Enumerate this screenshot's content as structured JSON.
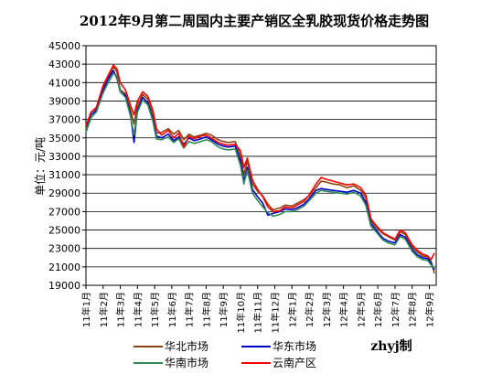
{
  "chart_data": {
    "type": "line",
    "title": "2012年9月第二周国内主要产销区全乳胶现货价格走势图",
    "ylabel": "单位：元/吨",
    "xlabel": "",
    "credit": "zhyj制",
    "ylim": [
      19000,
      45000
    ],
    "yticks": [
      19000,
      21000,
      23000,
      25000,
      27000,
      29000,
      31000,
      33000,
      35000,
      37000,
      39000,
      41000,
      43000,
      45000
    ],
    "yticks_labels": [
      "19000",
      "21000",
      "23000",
      "25000",
      "27000",
      "29000",
      "31000",
      "33000",
      "35000",
      "37000",
      "39000",
      "41000",
      "43000",
      "45000"
    ],
    "categories": [
      "11年1月",
      "11年2月",
      "11年3月",
      "11年4月",
      "11年5月",
      "11年6月",
      "11年7月",
      "11年8月",
      "11年9月",
      "11年10月",
      "11年11月",
      "11年12月",
      "12年1月",
      "12年2月",
      "12年3月",
      "12年4月",
      "12年5月",
      "12年6月",
      "12年7月",
      "12年8月",
      "12年9月"
    ],
    "xlim": [
      0,
      20.4
    ],
    "grid": true,
    "legend_placement": "bottom",
    "series": [
      {
        "name": "华北市场",
        "color": "#8B4513",
        "points": [
          [
            0,
            36000
          ],
          [
            0.3,
            37800
          ],
          [
            0.6,
            38200
          ],
          [
            1.0,
            40500
          ],
          [
            1.3,
            41500
          ],
          [
            1.6,
            42700
          ],
          [
            1.8,
            42200
          ],
          [
            2.0,
            40200
          ],
          [
            2.3,
            39800
          ],
          [
            2.6,
            38000
          ],
          [
            2.8,
            36500
          ],
          [
            3.0,
            38500
          ],
          [
            3.3,
            39700
          ],
          [
            3.6,
            39200
          ],
          [
            3.9,
            37500
          ],
          [
            4.1,
            35500
          ],
          [
            4.4,
            35600
          ],
          [
            4.8,
            36000
          ],
          [
            5.1,
            35400
          ],
          [
            5.4,
            35800
          ],
          [
            5.7,
            34800
          ],
          [
            6.0,
            35400
          ],
          [
            6.3,
            35100
          ],
          [
            6.7,
            35300
          ],
          [
            7.0,
            35500
          ],
          [
            7.3,
            35300
          ],
          [
            7.7,
            34800
          ],
          [
            8.0,
            34600
          ],
          [
            8.3,
            34500
          ],
          [
            8.7,
            34600
          ],
          [
            9.0,
            33000
          ],
          [
            9.2,
            31000
          ],
          [
            9.4,
            32500
          ],
          [
            9.7,
            30000
          ],
          [
            10.0,
            29200
          ],
          [
            10.3,
            28700
          ],
          [
            10.6,
            27800
          ],
          [
            10.9,
            27200
          ],
          [
            11.3,
            27400
          ],
          [
            11.6,
            27700
          ],
          [
            12.0,
            27600
          ],
          [
            12.3,
            27900
          ],
          [
            12.7,
            28300
          ],
          [
            13.0,
            28700
          ],
          [
            13.4,
            29600
          ],
          [
            13.7,
            30300
          ],
          [
            14.0,
            30200
          ],
          [
            14.4,
            30000
          ],
          [
            14.8,
            29900
          ],
          [
            15.2,
            29600
          ],
          [
            15.6,
            29800
          ],
          [
            16.0,
            29300
          ],
          [
            16.3,
            28500
          ],
          [
            16.6,
            26000
          ],
          [
            16.9,
            25300
          ],
          [
            17.3,
            24600
          ],
          [
            17.6,
            24300
          ],
          [
            18.0,
            23900
          ],
          [
            18.3,
            24800
          ],
          [
            18.6,
            24500
          ],
          [
            19.0,
            23200
          ],
          [
            19.3,
            22600
          ],
          [
            19.6,
            22200
          ],
          [
            19.9,
            22100
          ],
          [
            20.1,
            21600
          ],
          [
            20.3,
            20300
          ]
        ]
      },
      {
        "name": "华东市场",
        "color": "#0000CC",
        "points": [
          [
            0,
            36200
          ],
          [
            0.3,
            37500
          ],
          [
            0.6,
            38000
          ],
          [
            1.0,
            40200
          ],
          [
            1.3,
            41400
          ],
          [
            1.6,
            42300
          ],
          [
            1.8,
            41500
          ],
          [
            2.0,
            40000
          ],
          [
            2.3,
            39600
          ],
          [
            2.6,
            37500
          ],
          [
            2.8,
            34500
          ],
          [
            3.0,
            38000
          ],
          [
            3.3,
            39400
          ],
          [
            3.6,
            38800
          ],
          [
            3.9,
            37000
          ],
          [
            4.1,
            35200
          ],
          [
            4.4,
            35000
          ],
          [
            4.8,
            35400
          ],
          [
            5.1,
            34700
          ],
          [
            5.4,
            35100
          ],
          [
            5.7,
            34300
          ],
          [
            6.0,
            35000
          ],
          [
            6.3,
            34700
          ],
          [
            6.7,
            34900
          ],
          [
            7.0,
            35100
          ],
          [
            7.3,
            34800
          ],
          [
            7.7,
            34300
          ],
          [
            8.0,
            34100
          ],
          [
            8.3,
            34000
          ],
          [
            8.7,
            34100
          ],
          [
            9.0,
            32500
          ],
          [
            9.2,
            30300
          ],
          [
            9.4,
            31800
          ],
          [
            9.7,
            29400
          ],
          [
            10.0,
            28600
          ],
          [
            10.3,
            27900
          ],
          [
            10.6,
            26600
          ],
          [
            10.9,
            26800
          ],
          [
            11.3,
            27000
          ],
          [
            11.6,
            27300
          ],
          [
            12.0,
            27200
          ],
          [
            12.3,
            27400
          ],
          [
            12.7,
            27800
          ],
          [
            13.0,
            28400
          ],
          [
            13.4,
            29300
          ],
          [
            13.7,
            29500
          ],
          [
            14.0,
            29400
          ],
          [
            14.4,
            29300
          ],
          [
            14.8,
            29200
          ],
          [
            15.2,
            29100
          ],
          [
            15.6,
            29300
          ],
          [
            16.0,
            29000
          ],
          [
            16.3,
            28000
          ],
          [
            16.6,
            25700
          ],
          [
            16.9,
            25000
          ],
          [
            17.3,
            24100
          ],
          [
            17.6,
            23800
          ],
          [
            18.0,
            23600
          ],
          [
            18.3,
            24500
          ],
          [
            18.6,
            24200
          ],
          [
            19.0,
            22900
          ],
          [
            19.3,
            22300
          ],
          [
            19.6,
            22000
          ],
          [
            19.9,
            21900
          ],
          [
            20.1,
            21400
          ],
          [
            20.3,
            20700
          ]
        ]
      },
      {
        "name": "华南市场",
        "color": "#2E8B57",
        "points": [
          [
            0,
            35600
          ],
          [
            0.3,
            37200
          ],
          [
            0.6,
            37800
          ],
          [
            1.0,
            39900
          ],
          [
            1.3,
            41000
          ],
          [
            1.6,
            42000
          ],
          [
            1.8,
            41700
          ],
          [
            2.0,
            40000
          ],
          [
            2.3,
            39400
          ],
          [
            2.6,
            37300
          ],
          [
            2.8,
            35300
          ],
          [
            3.0,
            37800
          ],
          [
            3.3,
            39100
          ],
          [
            3.6,
            38600
          ],
          [
            3.9,
            36800
          ],
          [
            4.1,
            34900
          ],
          [
            4.4,
            34800
          ],
          [
            4.8,
            35100
          ],
          [
            5.1,
            34500
          ],
          [
            5.4,
            34900
          ],
          [
            5.7,
            33900
          ],
          [
            6.0,
            34600
          ],
          [
            6.3,
            34400
          ],
          [
            6.7,
            34600
          ],
          [
            7.0,
            34800
          ],
          [
            7.3,
            34600
          ],
          [
            7.7,
            34000
          ],
          [
            8.0,
            33800
          ],
          [
            8.3,
            33700
          ],
          [
            8.7,
            33800
          ],
          [
            9.0,
            32000
          ],
          [
            9.2,
            30000
          ],
          [
            9.4,
            31500
          ],
          [
            9.7,
            29000
          ],
          [
            10.0,
            28200
          ],
          [
            10.3,
            27500
          ],
          [
            10.6,
            26900
          ],
          [
            10.9,
            26500
          ],
          [
            11.3,
            26700
          ],
          [
            11.6,
            27000
          ],
          [
            12.0,
            27000
          ],
          [
            12.3,
            27200
          ],
          [
            12.7,
            27600
          ],
          [
            13.0,
            28200
          ],
          [
            13.4,
            29000
          ],
          [
            13.7,
            29300
          ],
          [
            14.0,
            29200
          ],
          [
            14.4,
            29100
          ],
          [
            14.8,
            29000
          ],
          [
            15.2,
            28900
          ],
          [
            15.6,
            29100
          ],
          [
            16.0,
            28700
          ],
          [
            16.3,
            27700
          ],
          [
            16.6,
            25400
          ],
          [
            16.9,
            24800
          ],
          [
            17.3,
            23900
          ],
          [
            17.6,
            23600
          ],
          [
            18.0,
            23400
          ],
          [
            18.3,
            24300
          ],
          [
            18.6,
            24000
          ],
          [
            19.0,
            22700
          ],
          [
            19.3,
            22100
          ],
          [
            19.6,
            21800
          ],
          [
            19.9,
            21700
          ],
          [
            20.1,
            21200
          ],
          [
            20.3,
            20900
          ]
        ]
      },
      {
        "name": "云南产区",
        "color": "#FF0000",
        "points": [
          [
            0,
            36300
          ],
          [
            0.3,
            37800
          ],
          [
            0.6,
            38300
          ],
          [
            1.0,
            40700
          ],
          [
            1.3,
            41800
          ],
          [
            1.6,
            42900
          ],
          [
            1.8,
            42500
          ],
          [
            2.0,
            41000
          ],
          [
            2.3,
            40200
          ],
          [
            2.6,
            38500
          ],
          [
            2.8,
            37500
          ],
          [
            3.0,
            39000
          ],
          [
            3.3,
            40000
          ],
          [
            3.6,
            39500
          ],
          [
            3.9,
            38000
          ],
          [
            4.1,
            36000
          ],
          [
            4.4,
            35300
          ],
          [
            4.8,
            35800
          ],
          [
            5.1,
            35000
          ],
          [
            5.4,
            35500
          ],
          [
            5.7,
            34000
          ],
          [
            6.0,
            35200
          ],
          [
            6.3,
            34900
          ],
          [
            6.7,
            35200
          ],
          [
            7.0,
            35300
          ],
          [
            7.3,
            35000
          ],
          [
            7.7,
            34500
          ],
          [
            8.0,
            34300
          ],
          [
            8.3,
            34200
          ],
          [
            8.7,
            34300
          ],
          [
            9.0,
            33600
          ],
          [
            9.2,
            31800
          ],
          [
            9.4,
            32800
          ],
          [
            9.7,
            30400
          ],
          [
            10.0,
            29400
          ],
          [
            10.3,
            28600
          ],
          [
            10.6,
            27500
          ],
          [
            10.9,
            27000
          ],
          [
            11.3,
            27100
          ],
          [
            11.6,
            27500
          ],
          [
            12.0,
            27400
          ],
          [
            12.3,
            27700
          ],
          [
            12.7,
            28100
          ],
          [
            13.0,
            28800
          ],
          [
            13.4,
            30000
          ],
          [
            13.7,
            30700
          ],
          [
            14.0,
            30500
          ],
          [
            14.4,
            30300
          ],
          [
            14.8,
            30100
          ],
          [
            15.2,
            29900
          ],
          [
            15.6,
            30000
          ],
          [
            16.0,
            29600
          ],
          [
            16.3,
            28800
          ],
          [
            16.6,
            26200
          ],
          [
            16.9,
            25500
          ],
          [
            17.3,
            24700
          ],
          [
            17.6,
            24400
          ],
          [
            18.0,
            24000
          ],
          [
            18.3,
            25000
          ],
          [
            18.6,
            24700
          ],
          [
            19.0,
            23400
          ],
          [
            19.3,
            22800
          ],
          [
            19.6,
            22400
          ],
          [
            19.9,
            22200
          ],
          [
            20.1,
            21800
          ],
          [
            20.3,
            22500
          ]
        ]
      }
    ]
  }
}
